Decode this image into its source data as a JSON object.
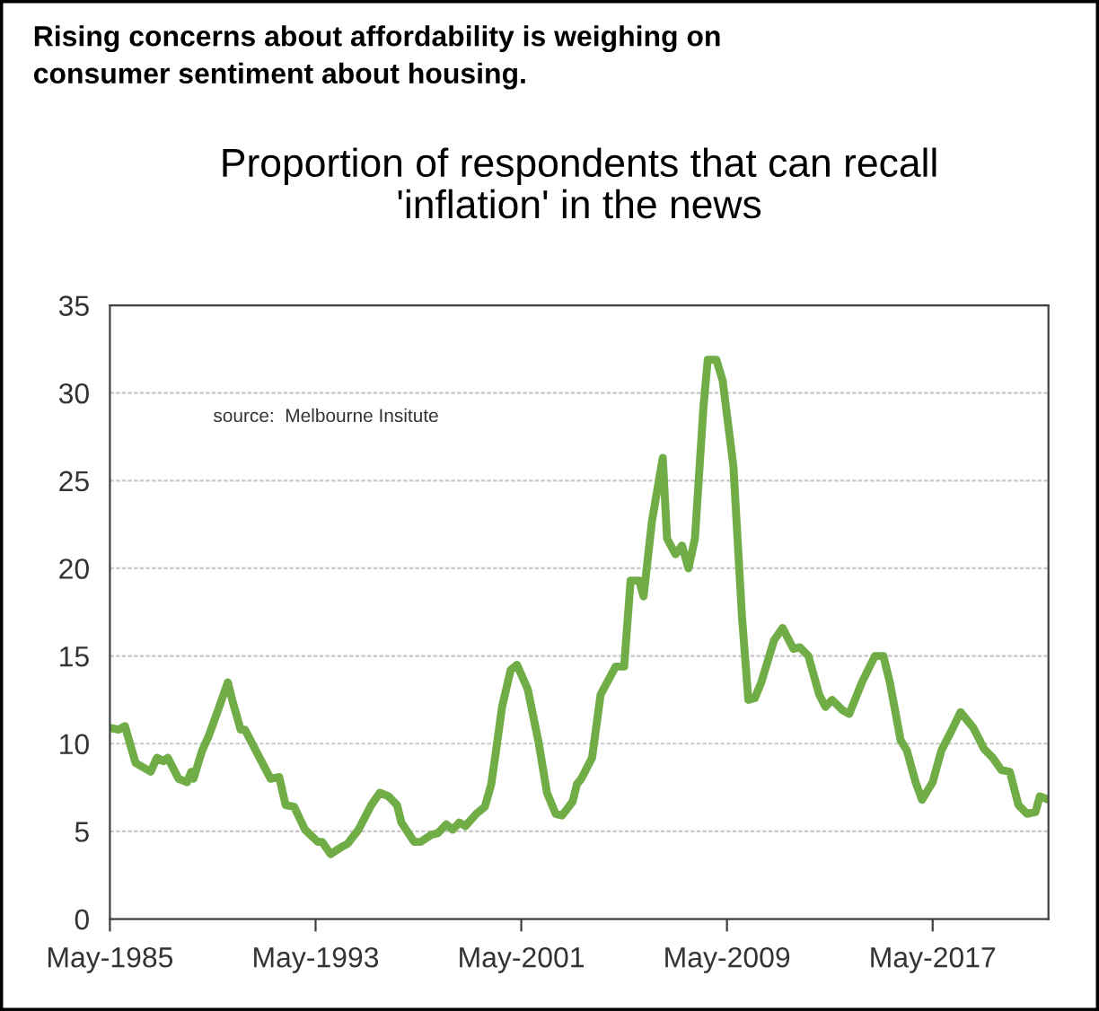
{
  "chart_data": {
    "type": "line",
    "subtitle": "Rising concerns about affordability is weighing on\nconsumer sentiment about housing.",
    "title": "Proportion of respondents that can recall\n'inflation' in the news",
    "annotations": [
      "source:  Melbourne Insitute"
    ],
    "x": [
      "1985-05",
      "1985-09",
      "1985-12",
      "1986-05",
      "1986-12",
      "1987-03",
      "1987-06",
      "1987-08",
      "1988-01",
      "1988-05",
      "1988-07",
      "1988-08",
      "1988-12",
      "1989-03",
      "1989-08",
      "1989-12",
      "1990-02",
      "1990-06",
      "1990-08",
      "1991-05",
      "1991-08",
      "1991-12",
      "1992-03",
      "1992-07",
      "1992-12",
      "1993-06",
      "1993-08",
      "1993-12",
      "1994-05",
      "1994-08",
      "1995-01",
      "1995-07",
      "1995-11",
      "1996-03",
      "1996-07",
      "1996-09",
      "1997-03",
      "1997-06",
      "1997-11",
      "1998-02",
      "1998-06",
      "1998-09",
      "1998-12",
      "1999-03",
      "1999-08",
      "1999-12",
      "2000-03",
      "2000-05",
      "2000-08",
      "2000-12",
      "2001-03",
      "2001-08",
      "2002-01",
      "2002-05",
      "2002-09",
      "2002-12",
      "2003-05",
      "2003-07",
      "2003-09",
      "2004-02",
      "2004-06",
      "2005-01",
      "2005-05",
      "2005-08",
      "2005-12",
      "2006-02",
      "2006-06",
      "2006-11",
      "2007-01",
      "2007-05",
      "2007-08",
      "2007-11",
      "2008-02",
      "2008-06",
      "2008-08",
      "2008-12",
      "2009-03",
      "2009-08",
      "2009-12",
      "2010-03",
      "2010-06",
      "2010-09",
      "2011-03",
      "2011-07",
      "2011-12",
      "2012-03",
      "2012-07",
      "2012-12",
      "2013-03",
      "2013-06",
      "2013-11",
      "2014-02",
      "2014-08",
      "2015-02",
      "2015-06",
      "2015-09",
      "2016-02",
      "2016-05",
      "2016-09",
      "2016-12",
      "2017-05",
      "2017-09",
      "2018-02",
      "2018-06",
      "2018-12",
      "2019-05",
      "2019-09",
      "2020-01",
      "2020-05",
      "2020-09",
      "2021-01",
      "2021-05",
      "2021-07",
      "2021-11"
    ],
    "series": [
      {
        "color": "#70ad47",
        "values": [
          10.9,
          10.8,
          11.0,
          8.9,
          8.4,
          9.2,
          9.0,
          9.2,
          8.0,
          7.8,
          8.4,
          8.0,
          9.6,
          10.4,
          12.1,
          13.5,
          12.5,
          10.8,
          10.8,
          8.7,
          8.0,
          8.1,
          6.5,
          6.4,
          5.1,
          4.4,
          4.4,
          3.7,
          4.1,
          4.3,
          5.1,
          6.5,
          7.2,
          7.0,
          6.5,
          5.5,
          4.4,
          4.4,
          4.8,
          4.9,
          5.4,
          5.1,
          5.5,
          5.3,
          6.0,
          6.4,
          7.7,
          9.4,
          12.1,
          14.2,
          14.5,
          13.1,
          10.1,
          7.2,
          6.0,
          5.9,
          6.7,
          7.7,
          8.0,
          9.2,
          12.8,
          14.4,
          14.4,
          19.3,
          19.3,
          18.4,
          22.7,
          26.3,
          21.7,
          20.8,
          21.3,
          20.0,
          21.7,
          29.2,
          31.9,
          31.9,
          30.7,
          25.8,
          17.2,
          12.5,
          12.6,
          13.5,
          15.9,
          16.6,
          15.4,
          15.5,
          15.0,
          12.8,
          12.1,
          12.5,
          11.9,
          11.7,
          13.5,
          15.0,
          15.0,
          13.5,
          10.2,
          9.6,
          7.8,
          6.8,
          7.8,
          9.6,
          10.8,
          11.8,
          10.9,
          9.7,
          9.2,
          8.5,
          8.4,
          6.5,
          6.0,
          6.1,
          7.0,
          6.8
        ]
      }
    ],
    "xlim": [
      "1985-05",
      "2021-11"
    ],
    "xticks": [
      {
        "value": "1985-05",
        "label": "May-1985"
      },
      {
        "value": "1993-05",
        "label": "May-1993"
      },
      {
        "value": "2001-05",
        "label": "May-2001"
      },
      {
        "value": "2009-05",
        "label": "May-2009"
      },
      {
        "value": "2017-05",
        "label": "May-2017"
      }
    ],
    "ylim": [
      0,
      35
    ],
    "yticks": [
      0,
      5,
      10,
      15,
      20,
      25,
      30,
      35
    ],
    "grid": "y",
    "legend": false,
    "marker": "none",
    "line_style": "solid"
  }
}
